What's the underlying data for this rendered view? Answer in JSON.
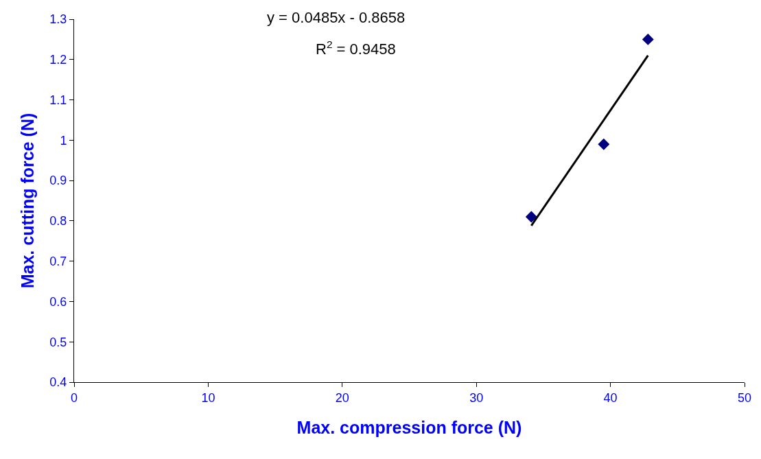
{
  "chart_data": {
    "type": "scatter",
    "xlabel": "Max. compression force (N)",
    "ylabel": "Max. cutting force (N)",
    "annotations": [
      "y = 0.0485x - 0.8658",
      "R$^{2}$ = 0.9458"
    ],
    "series": [
      {
        "color": "#000080",
        "marker": "diamond",
        "x": [
          34.1,
          39.5,
          42.8
        ],
        "values": [
          0.81,
          0.99,
          1.25
        ]
      },
      {
        "type": "line",
        "color": "#000000",
        "marker": "none",
        "line_style": "solid",
        "x": [
          34.1,
          42.8
        ],
        "values": [
          0.788,
          1.21
        ]
      }
    ],
    "xlim": [
      0,
      50
    ],
    "xticks": [
      0,
      10,
      20,
      30,
      40,
      50
    ],
    "ylim": [
      0.4,
      1.3
    ],
    "yticks": [
      0.4,
      0.5,
      0.6,
      0.7,
      0.8,
      0.9,
      1,
      1.1,
      1.2,
      1.3
    ]
  }
}
